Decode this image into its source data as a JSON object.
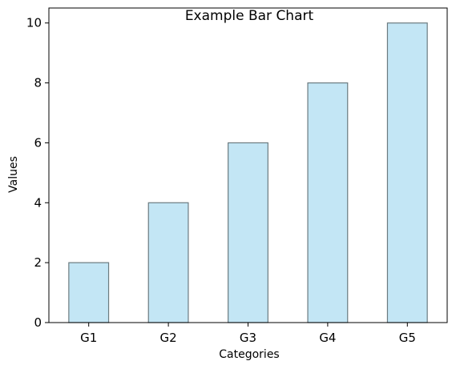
{
  "chart_data": {
    "type": "bar",
    "title": "Example Bar Chart",
    "xlabel": "Categories",
    "ylabel": "Values",
    "categories": [
      "G1",
      "G2",
      "G3",
      "G4",
      "G5"
    ],
    "values": [
      2,
      4,
      6,
      8,
      10
    ],
    "ylim": [
      0,
      10.5
    ],
    "yticks": [
      0,
      2,
      4,
      6,
      8,
      10
    ],
    "grid": false,
    "legend": "none",
    "colors": {
      "bar_fill": "#87CEEB",
      "bar_edge": "#6b7b80",
      "axis": "#000000"
    }
  }
}
